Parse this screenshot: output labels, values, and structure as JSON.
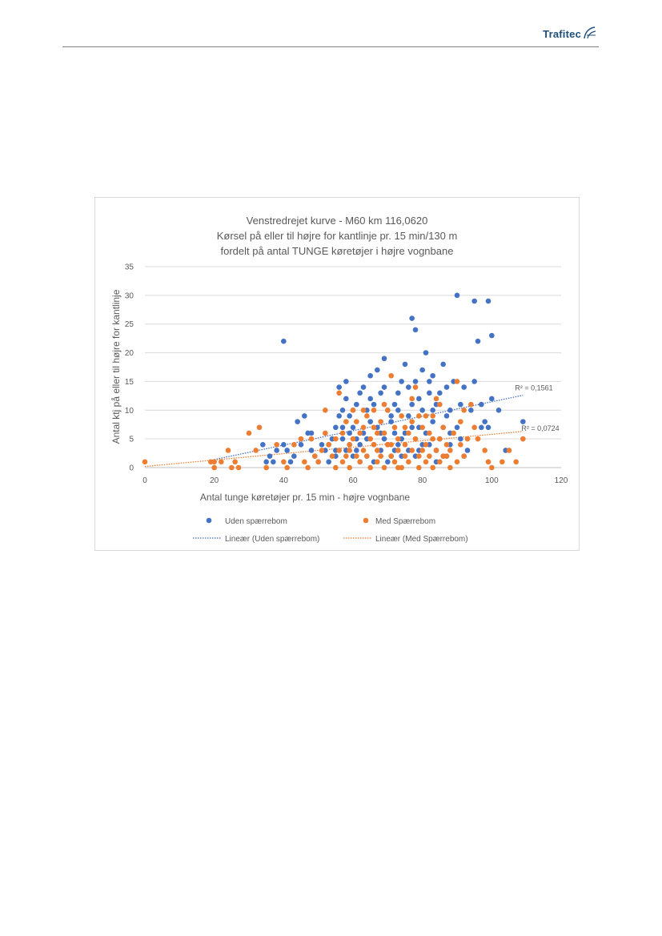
{
  "header": {
    "logo_text": "Trafitec",
    "logo_icon": "trafitec-swoosh-icon"
  },
  "colors": {
    "series1": "#4472c4",
    "series2": "#ed7d31",
    "grid": "#d9d9d9",
    "text": "#595959"
  },
  "chart_data": {
    "type": "scatter",
    "title": [
      "Venstredrejet kurve - M60 km 116,0620",
      "Kørsel på eller til højre for kantlinje pr. 15 min/130 m",
      "fordelt på antal TUNGE køretøjer i højre vognbane"
    ],
    "xlabel": "Antal tunge køretøjer pr. 15 min - højre vognbane",
    "ylabel": "Antal ktj på eller til højre for kantlinje",
    "xlim": [
      0,
      120
    ],
    "ylim": [
      0,
      35
    ],
    "xticks": [
      0,
      20,
      40,
      60,
      80,
      100,
      120
    ],
    "yticks": [
      0,
      5,
      10,
      15,
      20,
      25,
      30,
      35
    ],
    "grid": "horizontal",
    "legend_position": "bottom",
    "series": [
      {
        "name": "Uden spærrebom",
        "color": "#4472c4",
        "points": [
          [
            34,
            4
          ],
          [
            35,
            1
          ],
          [
            36,
            2
          ],
          [
            37,
            1
          ],
          [
            38,
            3
          ],
          [
            40,
            22
          ],
          [
            40,
            4
          ],
          [
            41,
            3
          ],
          [
            42,
            1
          ],
          [
            43,
            2
          ],
          [
            44,
            8
          ],
          [
            45,
            4
          ],
          [
            46,
            9
          ],
          [
            47,
            6
          ],
          [
            48,
            6
          ],
          [
            48,
            3
          ],
          [
            49,
            2
          ],
          [
            50,
            1
          ],
          [
            51,
            4
          ],
          [
            52,
            3
          ],
          [
            53,
            4
          ],
          [
            54,
            5
          ],
          [
            55,
            7
          ],
          [
            55,
            3
          ],
          [
            56,
            14
          ],
          [
            56,
            9
          ],
          [
            57,
            7
          ],
          [
            57,
            5
          ],
          [
            58,
            15
          ],
          [
            58,
            12
          ],
          [
            59,
            6
          ],
          [
            59,
            4
          ],
          [
            60,
            10
          ],
          [
            60,
            7
          ],
          [
            61,
            5
          ],
          [
            61,
            3
          ],
          [
            62,
            13
          ],
          [
            62,
            4
          ],
          [
            63,
            14
          ],
          [
            63,
            6
          ],
          [
            64,
            10
          ],
          [
            64,
            5
          ],
          [
            65,
            16
          ],
          [
            65,
            8
          ],
          [
            66,
            11
          ],
          [
            66,
            4
          ],
          [
            67,
            17
          ],
          [
            67,
            7
          ],
          [
            68,
            13
          ],
          [
            68,
            3
          ],
          [
            69,
            19
          ],
          [
            69,
            5
          ],
          [
            70,
            10
          ],
          [
            70,
            4
          ],
          [
            71,
            8
          ],
          [
            71,
            2
          ],
          [
            72,
            11
          ],
          [
            72,
            6
          ],
          [
            73,
            13
          ],
          [
            73,
            4
          ],
          [
            74,
            15
          ],
          [
            74,
            2
          ],
          [
            75,
            18
          ],
          [
            75,
            6
          ],
          [
            76,
            14
          ],
          [
            76,
            9
          ],
          [
            77,
            26
          ],
          [
            77,
            11
          ],
          [
            78,
            24
          ],
          [
            78,
            15
          ],
          [
            79,
            7
          ],
          [
            79,
            3
          ],
          [
            80,
            17
          ],
          [
            80,
            10
          ],
          [
            81,
            20
          ],
          [
            81,
            6
          ],
          [
            82,
            15
          ],
          [
            82,
            4
          ],
          [
            83,
            16
          ],
          [
            83,
            8
          ],
          [
            84,
            11
          ],
          [
            84,
            3
          ],
          [
            85,
            13
          ],
          [
            85,
            5
          ],
          [
            86,
            18
          ],
          [
            86,
            7
          ],
          [
            87,
            14
          ],
          [
            87,
            2
          ],
          [
            88,
            10
          ],
          [
            88,
            6
          ],
          [
            89,
            15
          ],
          [
            90,
            30
          ],
          [
            90,
            7
          ],
          [
            91,
            11
          ],
          [
            92,
            14
          ],
          [
            93,
            3
          ],
          [
            94,
            10
          ],
          [
            95,
            29
          ],
          [
            95,
            15
          ],
          [
            96,
            22
          ],
          [
            97,
            11
          ],
          [
            98,
            8
          ],
          [
            99,
            29
          ],
          [
            99,
            7
          ],
          [
            100,
            23
          ],
          [
            100,
            12
          ],
          [
            102,
            10
          ],
          [
            104,
            3
          ],
          [
            109,
            8
          ],
          [
            60,
            2
          ],
          [
            66,
            1
          ],
          [
            72,
            3
          ],
          [
            78,
            2
          ],
          [
            84,
            1
          ],
          [
            55,
            2
          ],
          [
            62,
            1
          ],
          [
            70,
            1
          ],
          [
            76,
            3
          ],
          [
            88,
            4
          ],
          [
            92,
            2
          ],
          [
            58,
            3
          ],
          [
            64,
            2
          ],
          [
            68,
            6
          ],
          [
            74,
            5
          ],
          [
            80,
            4
          ],
          [
            86,
            2
          ],
          [
            53,
            1
          ],
          [
            97,
            7
          ],
          [
            79,
            12
          ],
          [
            59,
            9
          ],
          [
            71,
            9
          ],
          [
            65,
            12
          ],
          [
            82,
            13
          ],
          [
            77,
            7
          ],
          [
            61,
            11
          ],
          [
            73,
            10
          ],
          [
            87,
            9
          ],
          [
            91,
            5
          ],
          [
            57,
            10
          ],
          [
            69,
            14
          ],
          [
            83,
            10
          ]
        ],
        "trendline": {
          "label": "Lineær (Uden spærrebom)",
          "x": [
            20,
            109
          ],
          "y": [
            1.4,
            12.6
          ],
          "r2": "R² = 0,1561"
        }
      },
      {
        "name": "Med Spærrebom",
        "color": "#ed7d31",
        "points": [
          [
            0,
            1
          ],
          [
            19,
            1
          ],
          [
            20,
            1
          ],
          [
            20,
            0
          ],
          [
            22,
            1
          ],
          [
            24,
            3
          ],
          [
            25,
            0
          ],
          [
            26,
            1
          ],
          [
            27,
            0
          ],
          [
            30,
            6
          ],
          [
            32,
            3
          ],
          [
            33,
            7
          ],
          [
            35,
            0
          ],
          [
            38,
            4
          ],
          [
            40,
            1
          ],
          [
            41,
            0
          ],
          [
            43,
            4
          ],
          [
            45,
            5
          ],
          [
            46,
            1
          ],
          [
            47,
            0
          ],
          [
            48,
            5
          ],
          [
            49,
            2
          ],
          [
            50,
            1
          ],
          [
            51,
            3
          ],
          [
            52,
            10
          ],
          [
            52,
            6
          ],
          [
            53,
            4
          ],
          [
            54,
            2
          ],
          [
            55,
            0
          ],
          [
            56,
            3
          ],
          [
            56,
            13
          ],
          [
            57,
            6
          ],
          [
            57,
            1
          ],
          [
            58,
            8
          ],
          [
            58,
            2
          ],
          [
            59,
            4
          ],
          [
            59,
            0
          ],
          [
            60,
            10
          ],
          [
            60,
            5
          ],
          [
            61,
            2
          ],
          [
            61,
            8
          ],
          [
            62,
            1
          ],
          [
            62,
            6
          ],
          [
            63,
            3
          ],
          [
            63,
            10
          ],
          [
            64,
            9
          ],
          [
            64,
            2
          ],
          [
            65,
            5
          ],
          [
            65,
            0
          ],
          [
            66,
            4
          ],
          [
            66,
            7
          ],
          [
            67,
            1
          ],
          [
            67,
            3
          ],
          [
            68,
            8
          ],
          [
            68,
            2
          ],
          [
            69,
            6
          ],
          [
            69,
            0
          ],
          [
            70,
            10
          ],
          [
            70,
            4
          ],
          [
            71,
            16
          ],
          [
            71,
            2
          ],
          [
            72,
            7
          ],
          [
            72,
            1
          ],
          [
            73,
            3
          ],
          [
            73,
            5
          ],
          [
            74,
            0
          ],
          [
            74,
            9
          ],
          [
            75,
            4
          ],
          [
            75,
            2
          ],
          [
            76,
            6
          ],
          [
            76,
            1
          ],
          [
            77,
            3
          ],
          [
            77,
            8
          ],
          [
            78,
            14
          ],
          [
            78,
            5
          ],
          [
            79,
            2
          ],
          [
            79,
            0
          ],
          [
            80,
            7
          ],
          [
            80,
            3
          ],
          [
            81,
            4
          ],
          [
            81,
            1
          ],
          [
            82,
            6
          ],
          [
            82,
            2
          ],
          [
            83,
            9
          ],
          [
            83,
            0
          ],
          [
            84,
            12
          ],
          [
            84,
            3
          ],
          [
            85,
            5
          ],
          [
            85,
            1
          ],
          [
            86,
            2
          ],
          [
            86,
            7
          ],
          [
            87,
            4
          ],
          [
            88,
            0
          ],
          [
            88,
            3
          ],
          [
            89,
            6
          ],
          [
            90,
            15
          ],
          [
            90,
            1
          ],
          [
            91,
            4
          ],
          [
            92,
            10
          ],
          [
            92,
            2
          ],
          [
            93,
            5
          ],
          [
            94,
            11
          ],
          [
            95,
            7
          ],
          [
            96,
            5
          ],
          [
            98,
            3
          ],
          [
            99,
            1
          ],
          [
            100,
            0
          ],
          [
            103,
            1
          ],
          [
            105,
            3
          ],
          [
            107,
            1
          ],
          [
            109,
            5
          ],
          [
            55,
            5
          ],
          [
            63,
            7
          ],
          [
            71,
            4
          ],
          [
            79,
            9
          ],
          [
            87,
            2
          ],
          [
            67,
            6
          ],
          [
            75,
            7
          ],
          [
            83,
            5
          ],
          [
            59,
            3
          ],
          [
            73,
            0
          ],
          [
            81,
            9
          ],
          [
            85,
            11
          ],
          [
            91,
            8
          ],
          [
            69,
            11
          ],
          [
            77,
            12
          ],
          [
            66,
            10
          ]
        ],
        "trendline": {
          "label": "Lineær (Med Spærrebom)",
          "x": [
            0,
            109
          ],
          "y": [
            0.2,
            6.3
          ],
          "r2": "R² = 0,0724"
        }
      }
    ]
  }
}
